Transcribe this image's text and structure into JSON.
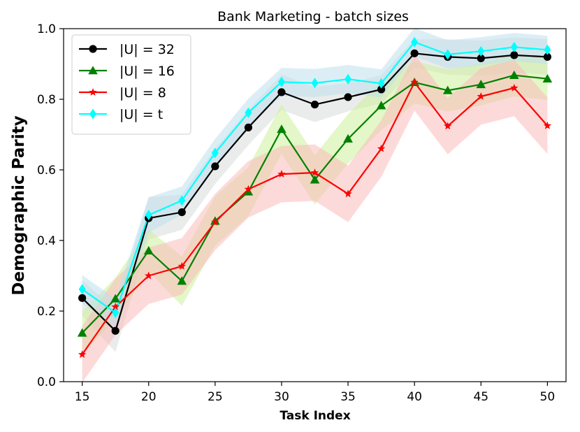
{
  "chart_data": {
    "type": "line",
    "title": "Bank Marketing - batch sizes",
    "xlabel": "Task Index",
    "ylabel": "Demographic Parity",
    "xlim": [
      13.6,
      51.4
    ],
    "ylim": [
      0.0,
      1.0
    ],
    "xticks": [
      "15",
      "20",
      "25",
      "30",
      "35",
      "40",
      "45",
      "50"
    ],
    "yticks": [
      "0.0",
      "0.2",
      "0.4",
      "0.6",
      "0.8",
      "1.0"
    ],
    "grid": false,
    "legend_position": "upper-left",
    "x": [
      15,
      17.5,
      20,
      22.5,
      25,
      27.5,
      30,
      32.5,
      35,
      37.5,
      40,
      42.5,
      45,
      47.5,
      50
    ],
    "series": [
      {
        "name": "|U| = 32",
        "color": "#000000",
        "band_color": "#d8dcdc",
        "marker": "circle",
        "values": [
          0.237,
          0.144,
          0.463,
          0.48,
          0.61,
          0.72,
          0.82,
          0.785,
          0.806,
          0.828,
          0.93,
          0.92,
          0.916,
          0.925,
          0.92
        ],
        "band": [
          0.05,
          0.06,
          0.06,
          0.05,
          0.05,
          0.05,
          0.05,
          0.05,
          0.04,
          0.04,
          0.04,
          0.05,
          0.05,
          0.05,
          0.05
        ]
      },
      {
        "name": "|U| = 16",
        "color": "#008000",
        "band_color": "#ccf09a",
        "marker": "triangle",
        "values": [
          0.138,
          0.235,
          0.371,
          0.285,
          0.455,
          0.538,
          0.715,
          0.572,
          0.688,
          0.782,
          0.848,
          0.825,
          0.842,
          0.868,
          0.858
        ],
        "band": [
          0.06,
          0.06,
          0.06,
          0.07,
          0.07,
          0.07,
          0.07,
          0.07,
          0.07,
          0.07,
          0.06,
          0.06,
          0.06,
          0.06,
          0.06
        ]
      },
      {
        "name": "|U| = 8",
        "color": "#ff0000",
        "band_color": "#fbbcbc",
        "marker": "star",
        "values": [
          0.077,
          0.212,
          0.3,
          0.327,
          0.452,
          0.545,
          0.588,
          0.592,
          0.532,
          0.66,
          0.848,
          0.724,
          0.808,
          0.832,
          0.725
        ],
        "band": [
          0.08,
          0.08,
          0.08,
          0.08,
          0.08,
          0.08,
          0.08,
          0.08,
          0.08,
          0.08,
          0.08,
          0.08,
          0.08,
          0.08,
          0.08
        ]
      },
      {
        "name": "|U| = t",
        "color": "#00ffff",
        "band_color": "#bfe0ec",
        "marker": "diamond",
        "values": [
          0.262,
          0.195,
          0.472,
          0.513,
          0.648,
          0.762,
          0.849,
          0.846,
          0.857,
          0.845,
          0.962,
          0.927,
          0.936,
          0.948,
          0.94
        ],
        "band": [
          0.04,
          0.04,
          0.05,
          0.04,
          0.04,
          0.04,
          0.04,
          0.04,
          0.04,
          0.04,
          0.04,
          0.04,
          0.04,
          0.04,
          0.04
        ]
      }
    ]
  }
}
